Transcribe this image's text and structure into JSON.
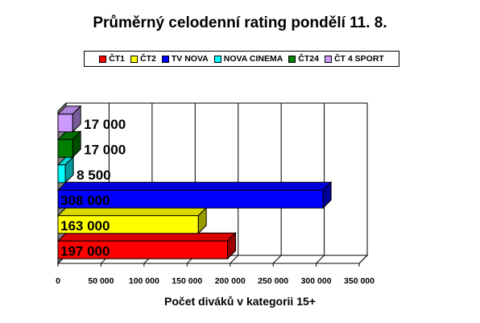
{
  "chart_data": {
    "type": "bar",
    "orientation": "horizontal",
    "title": "Průměrný celodenní rating pondělí 11. 8.",
    "xlabel": "Počet diváků v kategorii 15+",
    "ylabel": "",
    "xlim": [
      0,
      350000
    ],
    "ticks": [
      0,
      50000,
      100000,
      150000,
      200000,
      250000,
      300000,
      350000
    ],
    "tick_labels": [
      "0",
      "50 000",
      "100 000",
      "150 000",
      "200 000",
      "250 000",
      "300 000",
      "350 000"
    ],
    "legend_position": "top",
    "grid": true,
    "series": [
      {
        "name": "ČT1",
        "value": 197000,
        "label": "197 000",
        "color": "#ff0000"
      },
      {
        "name": "ČT2",
        "value": 163000,
        "label": "163 000",
        "color": "#ffff00"
      },
      {
        "name": "TV NOVA",
        "value": 308000,
        "label": "308 000",
        "color": "#0000ff"
      },
      {
        "name": "NOVA CINEMA",
        "value": 8500,
        "label": "8 500",
        "color": "#00ffff"
      },
      {
        "name": "ČT24",
        "value": 17000,
        "label": "17 000",
        "color": "#008000"
      },
      {
        "name": "ČT 4 SPORT",
        "value": 17000,
        "label": "17 000",
        "color": "#cc99ff"
      }
    ]
  }
}
